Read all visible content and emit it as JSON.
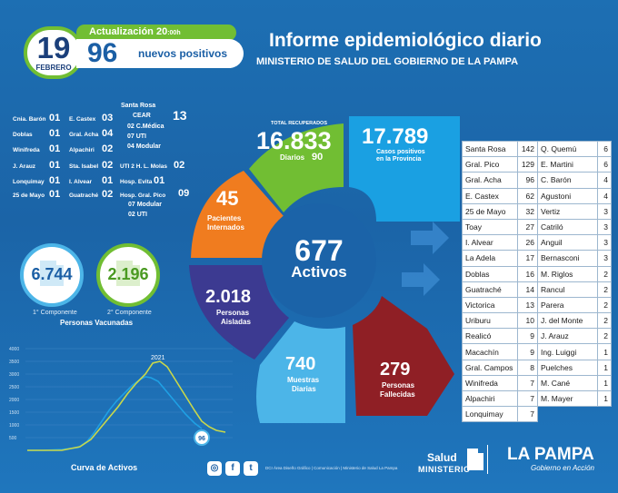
{
  "header": {
    "day": "19",
    "month": "FEBRERO",
    "update_label": "Actualización 20",
    "update_time_suffix": ":00h",
    "new_positives_count": "96",
    "new_positives_label": "nuevos positivos",
    "title": "Informe epidemiológico diario",
    "subtitle": "MINISTERIO DE SALUD DEL GOBIERNO DE LA PAMPA"
  },
  "localities_left": [
    {
      "name": "Cnia. Barón",
      "n": "01"
    },
    {
      "name": "Doblas",
      "n": "01"
    },
    {
      "name": "Winifreda",
      "n": "01"
    },
    {
      "name": "J. Arauz",
      "n": "01"
    },
    {
      "name": "Lonquimay",
      "n": "01"
    },
    {
      "name": "25 de Mayo",
      "n": "01"
    }
  ],
  "localities_mid": [
    {
      "name": "E. Castex",
      "n": "03"
    },
    {
      "name": "Gral. Acha",
      "n": "04"
    },
    {
      "name": "Alpachiri",
      "n": "02"
    },
    {
      "name": "Sta. Isabel",
      "n": "02"
    },
    {
      "name": "I. Alvear",
      "n": "01"
    },
    {
      "name": "Guatraché",
      "n": "02"
    }
  ],
  "santa_rosa": {
    "title": "Santa Rosa",
    "cear": "CEAR",
    "cear_n": "13",
    "lines": [
      "02 C.Médica",
      "07 UTI",
      "04 Modular"
    ],
    "uti": "UTI 2 H. L. Molas",
    "uti_n": "02",
    "evita": "Hosp. Evita",
    "evita_n": "01"
  },
  "gral_pico": {
    "title": "Hosp. Gral. Pico",
    "n": "09",
    "lines": [
      "07 Modular",
      "02 UTI"
    ]
  },
  "vaccination": {
    "first_value": "6.744",
    "second_value": "2.196",
    "first_label": "1° Componente",
    "second_label": "2° Componente",
    "title": "Personas Vacunadas"
  },
  "curve": {
    "title": "Curva de Activos",
    "peak_label": "2021",
    "end_label": "96",
    "y_ticks": [
      "4000",
      "3500",
      "3000",
      "2500",
      "2000",
      "1500",
      "1000",
      "500"
    ]
  },
  "donut": {
    "recovered_label": "TOTAL RECUPERADOS",
    "recovered_value": "16.833",
    "daily_label": "Diarios",
    "daily_value": "90",
    "positive_value": "17.789",
    "positive_label1": "Casos positivos",
    "positive_label2": "en la Provincia",
    "interned_value": "45",
    "interned_label1": "Pacientes",
    "interned_label2": "Internados",
    "isolated_value": "2.018",
    "isolated_label1": "Personas",
    "isolated_label2": "Aisladas",
    "samples_value": "740",
    "samples_label1": "Muestras",
    "samples_label2": "Diarias",
    "deceased_value": "279",
    "deceased_label1": "Personas",
    "deceased_label2": "Fallecidas",
    "active_value": "677",
    "active_label": "Activos"
  },
  "table_left": [
    {
      "name": "Santa Rosa",
      "n": "142"
    },
    {
      "name": "Gral. Pico",
      "n": "129"
    },
    {
      "name": "Gral. Acha",
      "n": "96"
    },
    {
      "name": "E. Castex",
      "n": "62"
    },
    {
      "name": "25 de Mayo",
      "n": "32"
    },
    {
      "name": "Toay",
      "n": "27"
    },
    {
      "name": "I. Alvear",
      "n": "26"
    },
    {
      "name": "La Adela",
      "n": "17"
    },
    {
      "name": "Doblas",
      "n": "16"
    },
    {
      "name": "Guatraché",
      "n": "14"
    },
    {
      "name": "Victorica",
      "n": "13"
    },
    {
      "name": "Uriburu",
      "n": "10"
    },
    {
      "name": "Realicó",
      "n": "9"
    },
    {
      "name": "Macachín",
      "n": "9"
    },
    {
      "name": "Gral. Campos",
      "n": "8"
    },
    {
      "name": "Winifreda",
      "n": "7"
    },
    {
      "name": "Alpachiri",
      "n": "7"
    },
    {
      "name": "Lonquimay",
      "n": "7"
    }
  ],
  "table_right": [
    {
      "name": "Q. Quemú",
      "n": "6"
    },
    {
      "name": "E. Martini",
      "n": "6"
    },
    {
      "name": "C. Barón",
      "n": "4"
    },
    {
      "name": "Agustoni",
      "n": "4"
    },
    {
      "name": "Vertiz",
      "n": "3"
    },
    {
      "name": "Catriló",
      "n": "3"
    },
    {
      "name": "Anguil",
      "n": "3"
    },
    {
      "name": "Bernasconi",
      "n": "3"
    },
    {
      "name": "M. Riglos",
      "n": "2"
    },
    {
      "name": "Rancul",
      "n": "2"
    },
    {
      "name": "Parera",
      "n": "2"
    },
    {
      "name": "J. del Monte",
      "n": "2"
    },
    {
      "name": "J. Arauz",
      "n": "2"
    },
    {
      "name": "Ing. Luiggi",
      "n": "1"
    },
    {
      "name": "Puelches",
      "n": "1"
    },
    {
      "name": "M. Cané",
      "n": "1"
    },
    {
      "name": "M. Mayer",
      "n": "1"
    }
  ],
  "footer": {
    "instagram": "◎",
    "facebook": "f",
    "twitter": "t",
    "credit": "DCI Área Diseño Gráfico | Comunicación | Ministerio de Salud La Pampa",
    "salud": "Salud",
    "ministerio": "MINISTERIO",
    "lapampa": "LA PAMPA",
    "gobierno": "Gobierno en Acción"
  },
  "colors": {
    "background": "#1b64a7",
    "green": "#71be33",
    "blue_seg": "#1aa0e2",
    "orange": "#f07c1f",
    "purple": "#3c3a91",
    "light_blue": "#4cb5e8",
    "red": "#8f1f25"
  }
}
